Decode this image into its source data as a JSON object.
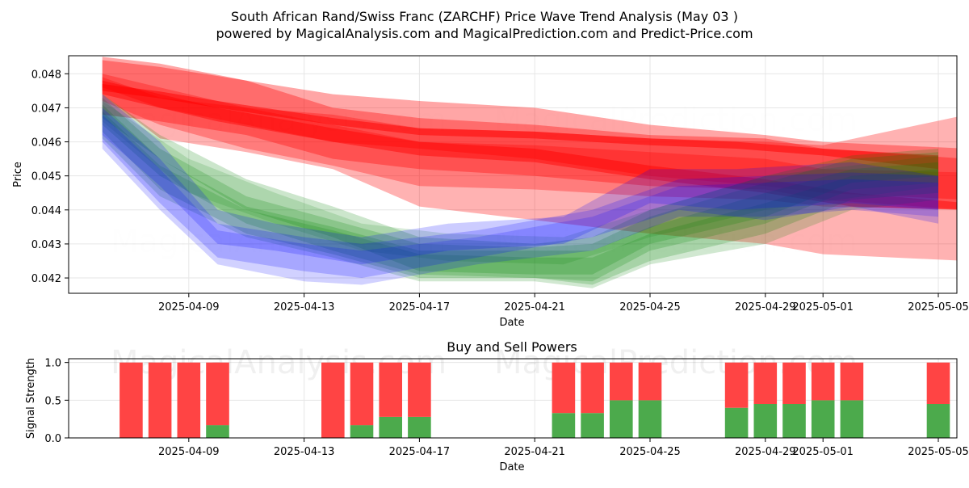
{
  "header": {
    "title_line1": "South African Rand/Swiss Franc (ZARCHF) Price Wave Trend Analysis (May 03 )",
    "title_line2": "powered by MagicalAnalysis.com and MagicalPrediction.com and Predict-Price.com"
  },
  "watermarks": [
    "MagicalAnalysis.com",
    "MagicalPrediction.com"
  ],
  "colors": {
    "red_band": "#ff0000",
    "blue_band": "#0000ff",
    "green_band": "#008000",
    "buy": "#4caa4c",
    "sell": "#ff4444",
    "grid": "#e6e6e6"
  },
  "chart_data": [
    {
      "type": "area",
      "title": "",
      "xlabel": "Date",
      "ylabel": "Price",
      "x_start": "2025-04-05",
      "xlim": [
        "2025-04-05",
        "2025-05-06"
      ],
      "ylim": [
        0.04155,
        0.04853
      ],
      "grid": true,
      "x_ticks": [
        "2025-04-09",
        "2025-04-13",
        "2025-04-17",
        "2025-04-21",
        "2025-04-25",
        "2025-04-29",
        "2025-05-01",
        "2025-05-05"
      ],
      "y_ticks": [
        0.042,
        0.043,
        0.044,
        0.045,
        0.046,
        0.047,
        0.048
      ],
      "red_bands": [
        {
          "pts": [
            [
              "2025-04-06",
              0.0475,
              0.0477
            ],
            [
              "2025-04-08",
              0.04728,
              0.04748
            ],
            [
              "2025-04-10",
              0.047,
              0.0472
            ],
            [
              "2025-04-14",
              0.0465,
              0.0467
            ],
            [
              "2025-04-17",
              0.0462,
              0.0464
            ],
            [
              "2025-04-21",
              0.0461,
              0.0463
            ],
            [
              "2025-04-25",
              0.0459,
              0.0461
            ],
            [
              "2025-04-28",
              0.0458,
              0.046
            ],
            [
              "2025-05-01",
              0.0456,
              0.0458
            ],
            [
              "2025-05-05",
              0.0452,
              0.0456
            ]
          ],
          "opacity": 0.5
        },
        {
          "pts": [
            [
              "2025-04-06",
              0.0476,
              0.0485
            ],
            [
              "2025-04-08",
              0.047,
              0.0483
            ],
            [
              "2025-04-11",
              0.0465,
              0.0478
            ],
            [
              "2025-04-14",
              0.046,
              0.0474
            ],
            [
              "2025-04-17",
              0.0458,
              0.0472
            ],
            [
              "2025-04-21",
              0.0455,
              0.047
            ],
            [
              "2025-04-25",
              0.045,
              0.0465
            ],
            [
              "2025-04-29",
              0.0447,
              0.0462
            ],
            [
              "2025-05-01",
              0.0445,
              0.046
            ],
            [
              "2025-05-06",
              0.0443,
              0.0458
            ]
          ],
          "opacity": 0.35
        },
        {
          "pts": [
            [
              "2025-04-06",
              0.0468,
              0.0484
            ],
            [
              "2025-04-08",
              0.0466,
              0.0482
            ],
            [
              "2025-04-11",
              0.0462,
              0.0478
            ],
            [
              "2025-04-14",
              0.0455,
              0.047
            ],
            [
              "2025-04-17",
              0.0452,
              0.0467
            ],
            [
              "2025-04-21",
              0.045,
              0.0465
            ],
            [
              "2025-04-25",
              0.0447,
              0.0462
            ],
            [
              "2025-04-29",
              0.0446,
              0.0461
            ],
            [
              "2025-05-01",
              0.0443,
              0.0458
            ],
            [
              "2025-05-06",
              0.044,
              0.0455
            ]
          ],
          "opacity": 0.35
        },
        {
          "pts": [
            [
              "2025-04-06",
              0.0472,
              0.048
            ],
            [
              "2025-04-08",
              0.0465,
              0.0476
            ],
            [
              "2025-04-11",
              0.0458,
              0.047
            ],
            [
              "2025-04-14",
              0.0453,
              0.0465
            ],
            [
              "2025-04-17",
              0.0447,
              0.046
            ],
            [
              "2025-04-21",
              0.0446,
              0.0459
            ],
            [
              "2025-04-25",
              0.0444,
              0.0457
            ],
            [
              "2025-04-29",
              0.0443,
              0.0455
            ],
            [
              "2025-05-01",
              0.0441,
              0.0452
            ],
            [
              "2025-05-06",
              0.044,
              0.0451
            ]
          ],
          "opacity": 0.3
        },
        {
          "pts": [
            [
              "2025-04-06",
              0.0474,
              0.0478
            ],
            [
              "2025-04-10",
              0.0466,
              0.047
            ],
            [
              "2025-04-14",
              0.046,
              0.0464
            ],
            [
              "2025-04-17",
              0.0456,
              0.046
            ],
            [
              "2025-04-21",
              0.0454,
              0.0458
            ],
            [
              "2025-04-25",
              0.0449,
              0.0453
            ],
            [
              "2025-04-29",
              0.0445,
              0.0449
            ],
            [
              "2025-05-02",
              0.0441,
              0.0445
            ],
            [
              "2025-05-06",
              0.044,
              0.0442
            ]
          ],
          "opacity": 0.45
        },
        {
          "pts": [
            [
              "2025-04-06",
              0.0474,
              0.0479
            ],
            [
              "2025-04-08",
              0.0461,
              0.0473
            ],
            [
              "2025-04-11",
              0.0457,
              0.047
            ],
            [
              "2025-04-14",
              0.0452,
              0.0468
            ],
            [
              "2025-04-17",
              0.0441,
              0.0464
            ],
            [
              "2025-04-21",
              0.0437,
              0.0463
            ],
            [
              "2025-04-25",
              0.0433,
              0.0461
            ],
            [
              "2025-04-29",
              0.043,
              0.046
            ],
            [
              "2025-05-01",
              0.0427,
              0.0459
            ],
            [
              "2025-05-06",
              0.0425,
              0.0468
            ]
          ],
          "opacity": 0.3
        }
      ],
      "blue_bands": [
        {
          "pts": [
            [
              "2025-04-06",
              0.0462,
              0.0474
            ],
            [
              "2025-04-08",
              0.0447,
              0.046
            ],
            [
              "2025-04-10",
              0.043,
              0.044
            ],
            [
              "2025-04-12",
              0.0428,
              0.0436
            ],
            [
              "2025-04-15",
              0.0424,
              0.0432
            ],
            [
              "2025-04-18",
              0.0428,
              0.0436
            ],
            [
              "2025-04-22",
              0.043,
              0.0438
            ],
            [
              "2025-04-25",
              0.0442,
              0.0452
            ],
            [
              "2025-04-28",
              0.044,
              0.0452
            ],
            [
              "2025-05-02",
              0.0442,
              0.0454
            ],
            [
              "2025-05-05",
              0.044,
              0.045
            ]
          ],
          "opacity": 0.2
        },
        {
          "pts": [
            [
              "2025-04-06",
              0.046,
              0.047
            ],
            [
              "2025-04-08",
              0.0442,
              0.0455
            ],
            [
              "2025-04-10",
              0.0426,
              0.0436
            ],
            [
              "2025-04-13",
              0.0422,
              0.0432
            ],
            [
              "2025-04-15",
              0.042,
              0.043
            ],
            [
              "2025-04-19",
              0.0426,
              0.0434
            ],
            [
              "2025-04-23",
              0.0432,
              0.044
            ],
            [
              "2025-04-26",
              0.044,
              0.0449
            ],
            [
              "2025-04-29",
              0.0437,
              0.045
            ],
            [
              "2025-05-02",
              0.0441,
              0.0451
            ],
            [
              "2025-05-05",
              0.0436,
              0.045
            ]
          ],
          "opacity": 0.2
        },
        {
          "pts": [
            [
              "2025-04-06",
              0.0458,
              0.0468
            ],
            [
              "2025-04-08",
              0.044,
              0.0452
            ],
            [
              "2025-04-10",
              0.0424,
              0.0434
            ],
            [
              "2025-04-13",
              0.0419,
              0.043
            ],
            [
              "2025-04-15",
              0.0418,
              0.0428
            ],
            [
              "2025-04-19",
              0.0424,
              0.0432
            ],
            [
              "2025-04-23",
              0.0428,
              0.0438
            ],
            [
              "2025-04-26",
              0.0438,
              0.0447
            ],
            [
              "2025-04-29",
              0.0438,
              0.0448
            ],
            [
              "2025-05-02",
              0.044,
              0.0449
            ],
            [
              "2025-05-05",
              0.0438,
              0.0448
            ]
          ],
          "opacity": 0.18
        }
      ],
      "green_bands": [
        {
          "pts": [
            [
              "2025-04-06",
              0.0467,
              0.0474
            ],
            [
              "2025-04-08",
              0.0455,
              0.0462
            ],
            [
              "2025-04-11",
              0.044,
              0.0449
            ],
            [
              "2025-04-14",
              0.0432,
              0.0441
            ],
            [
              "2025-04-17",
              0.0422,
              0.0432
            ],
            [
              "2025-04-21",
              0.0421,
              0.043
            ],
            [
              "2025-04-23",
              0.0421,
              0.0432
            ],
            [
              "2025-04-25",
              0.043,
              0.044
            ],
            [
              "2025-04-29",
              0.0438,
              0.045
            ],
            [
              "2025-05-02",
              0.0448,
              0.0456
            ],
            [
              "2025-05-05",
              0.045,
              0.0458
            ]
          ],
          "opacity": 0.2
        },
        {
          "pts": [
            [
              "2025-04-06",
              0.0465,
              0.0473
            ],
            [
              "2025-04-08",
              0.045,
              0.0458
            ],
            [
              "2025-04-11",
              0.0436,
              0.0444
            ],
            [
              "2025-04-14",
              0.0428,
              0.0437
            ],
            [
              "2025-04-17",
              0.0421,
              0.043
            ],
            [
              "2025-04-21",
              0.042,
              0.0429
            ],
            [
              "2025-04-23",
              0.0419,
              0.043
            ],
            [
              "2025-04-25",
              0.0428,
              0.0438
            ],
            [
              "2025-04-29",
              0.0436,
              0.0448
            ],
            [
              "2025-05-02",
              0.0446,
              0.0455
            ],
            [
              "2025-05-05",
              0.0448,
              0.0457
            ]
          ],
          "opacity": 0.2
        },
        {
          "pts": [
            [
              "2025-04-06",
              0.0463,
              0.0471
            ],
            [
              "2025-04-08",
              0.0446,
              0.0455
            ],
            [
              "2025-04-11",
              0.0433,
              0.0441
            ],
            [
              "2025-04-14",
              0.0427,
              0.0435
            ],
            [
              "2025-04-17",
              0.042,
              0.0428
            ],
            [
              "2025-04-21",
              0.042,
              0.0428
            ],
            [
              "2025-04-23",
              0.0418,
              0.0428
            ],
            [
              "2025-04-25",
              0.0425,
              0.0435
            ],
            [
              "2025-04-29",
              0.0433,
              0.0445
            ],
            [
              "2025-05-02",
              0.0443,
              0.0452
            ],
            [
              "2025-05-05",
              0.0445,
              0.0454
            ]
          ],
          "opacity": 0.2
        },
        {
          "pts": [
            [
              "2025-04-06",
              0.0461,
              0.0469
            ],
            [
              "2025-04-08",
              0.0444,
              0.0453
            ],
            [
              "2025-04-11",
              0.0432,
              0.044
            ],
            [
              "2025-04-14",
              0.0426,
              0.0434
            ],
            [
              "2025-04-17",
              0.0419,
              0.0427
            ],
            [
              "2025-04-21",
              0.0419,
              0.0426
            ],
            [
              "2025-04-23",
              0.0417,
              0.0426
            ],
            [
              "2025-04-25",
              0.0424,
              0.0433
            ],
            [
              "2025-04-29",
              0.043,
              0.0442
            ],
            [
              "2025-05-02",
              0.044,
              0.045
            ],
            [
              "2025-05-05",
              0.0443,
              0.0452
            ]
          ],
          "opacity": 0.18
        },
        {
          "pts": [
            [
              "2025-04-06",
              0.0466,
              0.0472
            ],
            [
              "2025-04-09",
              0.0445,
              0.0455
            ],
            [
              "2025-04-12",
              0.0436,
              0.0445
            ],
            [
              "2025-04-15",
              0.0428,
              0.0436
            ],
            [
              "2025-04-18",
              0.0425,
              0.0433
            ],
            [
              "2025-04-22",
              0.0424,
              0.0432
            ],
            [
              "2025-04-25",
              0.0432,
              0.044
            ],
            [
              "2025-04-29",
              0.044,
              0.045
            ],
            [
              "2025-05-05",
              0.0447,
              0.0456
            ]
          ],
          "opacity": 0.15
        }
      ]
    },
    {
      "type": "bar",
      "title": "Buy and Sell Powers",
      "xlabel": "Date",
      "ylabel": "Signal Strength",
      "ylim": [
        0,
        1.05
      ],
      "y_ticks": [
        "0.0",
        "0.5",
        "1.0"
      ],
      "x_ticks": [
        "2025-04-09",
        "2025-04-13",
        "2025-04-17",
        "2025-04-21",
        "2025-04-25",
        "2025-04-29",
        "2025-05-01",
        "2025-05-05"
      ],
      "dates": [
        "2025-04-07",
        "2025-04-08",
        "2025-04-09",
        "2025-04-10",
        "2025-04-14",
        "2025-04-15",
        "2025-04-16",
        "2025-04-17",
        "2025-04-22",
        "2025-04-23",
        "2025-04-24",
        "2025-04-25",
        "2025-04-28",
        "2025-04-29",
        "2025-04-30",
        "2025-05-01",
        "2025-05-02",
        "2025-05-05"
      ],
      "series": [
        {
          "name": "Buy",
          "values": [
            0,
            0,
            0,
            0.17,
            0,
            0.17,
            0.28,
            0.28,
            0.33,
            0.33,
            0.5,
            0.5,
            0.4,
            0.45,
            0.45,
            0.5,
            0.5,
            0.45
          ]
        },
        {
          "name": "Sell",
          "values": [
            1.0,
            1.0,
            1.0,
            0.83,
            1.0,
            0.83,
            0.72,
            0.72,
            0.67,
            0.67,
            0.5,
            0.5,
            0.6,
            0.55,
            0.55,
            0.5,
            0.5,
            0.55
          ]
        }
      ]
    }
  ]
}
